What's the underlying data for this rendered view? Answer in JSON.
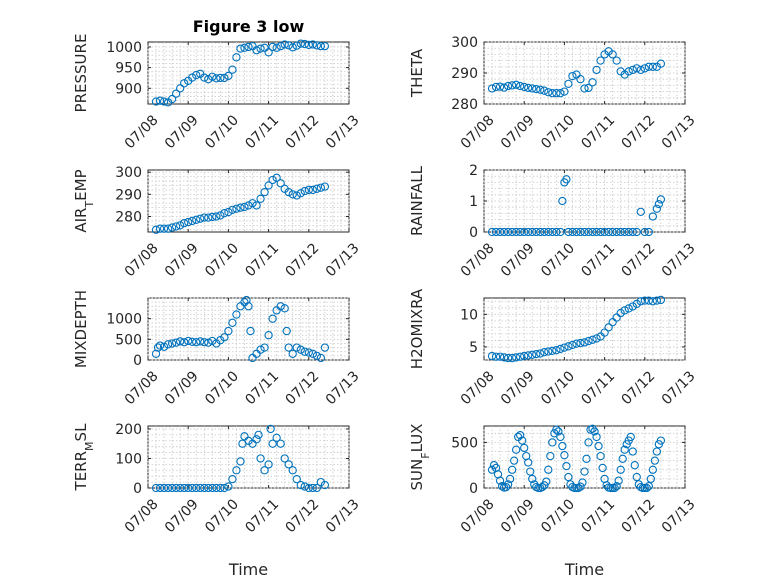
{
  "chart_data": [
    {
      "type": "scatter",
      "title": "Figure 3 low",
      "ylabel": "PRESSURE",
      "ylabel_base": "PRESSURE",
      "ylabel_sub": "",
      "xlabel": "",
      "xlim": [
        0,
        5
      ],
      "ylim": [
        862,
        1012
      ],
      "xticks": [
        "07/08",
        "07/09",
        "07/10",
        "07/11",
        "07/12",
        "07/13"
      ],
      "yticks": [
        900,
        950,
        1000
      ],
      "x": [
        0.2,
        0.3,
        0.4,
        0.5,
        0.6,
        0.7,
        0.8,
        0.9,
        1.0,
        1.1,
        1.2,
        1.3,
        1.4,
        1.5,
        1.6,
        1.7,
        1.8,
        1.9,
        2.0,
        2.1,
        2.2,
        2.3,
        2.4,
        2.5,
        2.6,
        2.7,
        2.8,
        2.9,
        3.0,
        3.1,
        3.2,
        3.3,
        3.4,
        3.5,
        3.6,
        3.7,
        3.8,
        3.9,
        4.0,
        4.1,
        4.2,
        4.3,
        4.4
      ],
      "y": [
        868,
        870,
        868,
        866,
        874,
        887,
        900,
        912,
        918,
        926,
        932,
        935,
        926,
        922,
        928,
        924,
        925,
        925,
        930,
        945,
        975,
        996,
        998,
        1000,
        1002,
        992,
        996,
        998,
        987,
        1000,
        998,
        1002,
        1006,
        1004,
        999,
        1003,
        1008,
        1007,
        1005,
        1006,
        1004,
        1002,
        1002
      ]
    },
    {
      "type": "scatter",
      "title": "",
      "ylabel": "THETA",
      "ylabel_base": "THETA",
      "ylabel_sub": "",
      "xlabel": "",
      "xlim": [
        0,
        5
      ],
      "ylim": [
        280,
        300
      ],
      "xticks": [
        "07/08",
        "07/09",
        "07/10",
        "07/11",
        "07/12",
        "07/13"
      ],
      "yticks": [
        280,
        290,
        300
      ],
      "x": [
        0.2,
        0.3,
        0.4,
        0.5,
        0.6,
        0.7,
        0.8,
        0.9,
        1.0,
        1.1,
        1.2,
        1.3,
        1.4,
        1.5,
        1.6,
        1.7,
        1.8,
        1.9,
        2.0,
        2.1,
        2.2,
        2.3,
        2.4,
        2.5,
        2.6,
        2.7,
        2.8,
        2.9,
        3.0,
        3.1,
        3.2,
        3.3,
        3.4,
        3.5,
        3.6,
        3.7,
        3.8,
        3.9,
        4.0,
        4.1,
        4.2,
        4.3,
        4.4
      ],
      "y": [
        285,
        285.5,
        285.6,
        285.3,
        285.8,
        286,
        286.2,
        285.8,
        285.5,
        285.2,
        285,
        284.8,
        284.6,
        284.3,
        283.8,
        283.5,
        283.5,
        283.5,
        284,
        286.5,
        289,
        289.5,
        288,
        285,
        285.2,
        287,
        291,
        294,
        296,
        297,
        296,
        294,
        290.5,
        289.5,
        290.5,
        291,
        291.5,
        291,
        291.5,
        292,
        292,
        292,
        293
      ]
    },
    {
      "type": "scatter",
      "title": "",
      "ylabel": "AIR_TEMP",
      "ylabel_base": "AIR",
      "ylabel_sub": "T",
      "ylabel_rest": "EMP",
      "xlabel": "",
      "xlim": [
        0,
        5
      ],
      "ylim": [
        273,
        301
      ],
      "xticks": [
        "07/08",
        "07/09",
        "07/10",
        "07/11",
        "07/12",
        "07/13"
      ],
      "yticks": [
        280,
        290,
        300
      ],
      "x": [
        0.2,
        0.3,
        0.4,
        0.5,
        0.6,
        0.7,
        0.8,
        0.9,
        1.0,
        1.1,
        1.2,
        1.3,
        1.4,
        1.5,
        1.6,
        1.7,
        1.8,
        1.9,
        2.0,
        2.1,
        2.2,
        2.3,
        2.4,
        2.5,
        2.6,
        2.7,
        2.8,
        2.9,
        3.0,
        3.1,
        3.2,
        3.3,
        3.4,
        3.5,
        3.6,
        3.7,
        3.8,
        3.9,
        4.0,
        4.1,
        4.2,
        4.3,
        4.4
      ],
      "y": [
        274,
        274.5,
        274.5,
        274.5,
        275,
        275.5,
        276,
        277,
        277.5,
        278,
        278.5,
        279,
        279.5,
        279.5,
        279.8,
        280,
        280.5,
        281.5,
        282,
        283,
        283.5,
        284,
        284.3,
        285,
        286,
        285,
        288,
        291,
        294,
        296.5,
        297.5,
        295,
        292.5,
        291,
        290,
        289.5,
        290.5,
        291.5,
        292,
        292,
        292.5,
        293,
        293.5
      ]
    },
    {
      "type": "scatter",
      "title": "",
      "ylabel": "RAINFALL",
      "ylabel_base": "RAINFALL",
      "ylabel_sub": "",
      "xlabel": "",
      "xlim": [
        0,
        5
      ],
      "ylim": [
        0,
        2
      ],
      "xticks": [
        "07/08",
        "07/09",
        "07/10",
        "07/11",
        "07/12",
        "07/13"
      ],
      "yticks": [
        0,
        1,
        2
      ],
      "x": [
        0.2,
        0.3,
        0.4,
        0.5,
        0.6,
        0.7,
        0.8,
        0.9,
        1.0,
        1.1,
        1.2,
        1.3,
        1.4,
        1.5,
        1.6,
        1.7,
        1.8,
        1.9,
        1.95,
        2.0,
        2.05,
        2.1,
        2.2,
        2.3,
        2.4,
        2.5,
        2.6,
        2.7,
        2.8,
        2.9,
        3.0,
        3.1,
        3.2,
        3.3,
        3.4,
        3.5,
        3.6,
        3.7,
        3.8,
        3.9,
        4.0,
        4.1,
        4.2,
        4.3,
        4.35,
        4.4
      ],
      "y": [
        0,
        0,
        0,
        0,
        0,
        0,
        0,
        0,
        0,
        0,
        0,
        0,
        0,
        0,
        0,
        0,
        0,
        0,
        1.0,
        1.6,
        1.7,
        0,
        0,
        0,
        0,
        0,
        0,
        0,
        0,
        0,
        0,
        0,
        0,
        0,
        0,
        0,
        0,
        0,
        0,
        0.65,
        0,
        0,
        0.5,
        0.75,
        0.9,
        1.05
      ]
    },
    {
      "type": "scatter",
      "title": "",
      "ylabel": "MIXDEPTH",
      "ylabel_base": "MIXDEPTH",
      "ylabel_sub": "",
      "xlabel": "",
      "xlim": [
        0,
        5
      ],
      "ylim": [
        0,
        1500
      ],
      "xticks": [
        "07/08",
        "07/09",
        "07/10",
        "07/11",
        "07/12",
        "07/13"
      ],
      "yticks": [
        0,
        500,
        1000
      ],
      "x": [
        0.2,
        0.25,
        0.3,
        0.4,
        0.5,
        0.6,
        0.7,
        0.8,
        0.9,
        1.0,
        1.1,
        1.2,
        1.3,
        1.4,
        1.5,
        1.6,
        1.7,
        1.8,
        1.9,
        2.0,
        2.1,
        2.2,
        2.3,
        2.4,
        2.45,
        2.5,
        2.55,
        2.6,
        2.7,
        2.8,
        2.9,
        3.0,
        3.1,
        3.2,
        3.3,
        3.4,
        3.45,
        3.5,
        3.6,
        3.7,
        3.8,
        3.9,
        4.0,
        4.1,
        4.2,
        4.3,
        4.4
      ],
      "y": [
        150,
        300,
        350,
        320,
        380,
        400,
        420,
        450,
        430,
        460,
        440,
        430,
        450,
        430,
        420,
        460,
        400,
        480,
        550,
        700,
        900,
        1100,
        1300,
        1400,
        1450,
        1300,
        700,
        50,
        150,
        250,
        300,
        600,
        1000,
        1200,
        1300,
        1250,
        700,
        300,
        150,
        300,
        250,
        200,
        180,
        150,
        100,
        50,
        300
      ]
    },
    {
      "type": "scatter",
      "title": "",
      "ylabel": "H2OMIXRA",
      "ylabel_base": "H2OMIXRA",
      "ylabel_sub": "",
      "xlabel": "",
      "xlim": [
        0,
        5
      ],
      "ylim": [
        3,
        12.5
      ],
      "xticks": [
        "07/08",
        "07/09",
        "07/10",
        "07/11",
        "07/12",
        "07/13"
      ],
      "yticks": [
        5,
        10
      ],
      "x": [
        0.2,
        0.3,
        0.4,
        0.5,
        0.6,
        0.7,
        0.8,
        0.9,
        1.0,
        1.1,
        1.2,
        1.3,
        1.4,
        1.5,
        1.6,
        1.7,
        1.8,
        1.9,
        2.0,
        2.1,
        2.2,
        2.3,
        2.4,
        2.5,
        2.6,
        2.7,
        2.8,
        2.9,
        3.0,
        3.1,
        3.2,
        3.3,
        3.4,
        3.5,
        3.6,
        3.7,
        3.8,
        3.9,
        4.0,
        4.1,
        4.2,
        4.3,
        4.4
      ],
      "y": [
        3.6,
        3.5,
        3.5,
        3.4,
        3.3,
        3.3,
        3.4,
        3.5,
        3.6,
        3.7,
        3.8,
        3.9,
        4.0,
        4.2,
        4.3,
        4.4,
        4.5,
        4.7,
        4.9,
        5.1,
        5.3,
        5.5,
        5.6,
        5.7,
        5.9,
        6.1,
        6.3,
        6.6,
        7.2,
        8.0,
        8.8,
        9.5,
        10.2,
        10.6,
        10.9,
        11.2,
        11.6,
        12.0,
        12.1,
        12.1,
        12.0,
        12.1,
        12.2
      ]
    },
    {
      "type": "scatter",
      "title": "",
      "ylabel": "TERR_MSL",
      "ylabel_base": "TERR",
      "ylabel_sub": "M",
      "ylabel_rest": "SL",
      "xlabel": "Time",
      "xlim": [
        0,
        5
      ],
      "ylim": [
        0,
        210
      ],
      "xticks": [
        "07/08",
        "07/09",
        "07/10",
        "07/11",
        "07/12",
        "07/13"
      ],
      "yticks": [
        0,
        100,
        200
      ],
      "x": [
        0.2,
        0.3,
        0.4,
        0.5,
        0.6,
        0.7,
        0.8,
        0.9,
        1.0,
        1.1,
        1.2,
        1.3,
        1.4,
        1.5,
        1.6,
        1.7,
        1.8,
        1.9,
        2.0,
        2.1,
        2.2,
        2.3,
        2.35,
        2.4,
        2.5,
        2.6,
        2.7,
        2.75,
        2.8,
        2.9,
        3.0,
        3.05,
        3.1,
        3.2,
        3.3,
        3.4,
        3.5,
        3.6,
        3.7,
        3.8,
        3.9,
        4.0,
        4.1,
        4.2,
        4.3,
        4.4
      ],
      "y": [
        0,
        0,
        0,
        0,
        0,
        0,
        0,
        0,
        0,
        0,
        0,
        0,
        0,
        0,
        0,
        0,
        0,
        0,
        5,
        30,
        60,
        90,
        150,
        175,
        160,
        150,
        165,
        180,
        100,
        60,
        80,
        200,
        150,
        170,
        150,
        100,
        80,
        60,
        30,
        10,
        5,
        0,
        0,
        0,
        20,
        10
      ]
    },
    {
      "type": "scatter",
      "title": "",
      "ylabel": "SUN_FLUX",
      "ylabel_base": "SUN",
      "ylabel_sub": "F",
      "ylabel_rest": "LUX",
      "xlabel": "Time",
      "xlim": [
        0,
        5
      ],
      "ylim": [
        0,
        680
      ],
      "xticks": [
        "07/08",
        "07/09",
        "07/10",
        "07/11",
        "07/12",
        "07/13"
      ],
      "yticks": [
        0,
        500
      ],
      "x": [
        0.2,
        0.25,
        0.3,
        0.35,
        0.4,
        0.45,
        0.5,
        0.55,
        0.6,
        0.65,
        0.7,
        0.75,
        0.8,
        0.85,
        0.9,
        0.95,
        1.0,
        1.05,
        1.1,
        1.15,
        1.2,
        1.25,
        1.3,
        1.35,
        1.4,
        1.45,
        1.5,
        1.55,
        1.6,
        1.65,
        1.7,
        1.75,
        1.8,
        1.85,
        1.9,
        1.95,
        2.0,
        2.05,
        2.1,
        2.15,
        2.2,
        2.25,
        2.3,
        2.35,
        2.4,
        2.45,
        2.5,
        2.55,
        2.6,
        2.65,
        2.7,
        2.75,
        2.8,
        2.85,
        2.9,
        2.95,
        3.0,
        3.05,
        3.1,
        3.15,
        3.2,
        3.25,
        3.3,
        3.35,
        3.4,
        3.45,
        3.5,
        3.55,
        3.6,
        3.65,
        3.7,
        3.75,
        3.8,
        3.85,
        3.9,
        3.95,
        4.0,
        4.05,
        4.1,
        4.15,
        4.2,
        4.25,
        4.3,
        4.35,
        4.4
      ],
      "y": [
        200,
        250,
        220,
        150,
        80,
        20,
        5,
        10,
        40,
        100,
        200,
        300,
        420,
        560,
        580,
        520,
        440,
        350,
        280,
        180,
        100,
        40,
        10,
        0,
        0,
        10,
        30,
        70,
        200,
        350,
        500,
        600,
        640,
        620,
        560,
        460,
        360,
        240,
        120,
        40,
        10,
        0,
        0,
        0,
        15,
        60,
        180,
        320,
        500,
        640,
        650,
        620,
        560,
        460,
        350,
        220,
        100,
        30,
        5,
        0,
        0,
        0,
        20,
        80,
        200,
        320,
        420,
        480,
        520,
        560,
        400,
        250,
        120,
        40,
        10,
        0,
        0,
        0,
        20,
        100,
        200,
        300,
        400,
        480,
        520
      ]
    }
  ]
}
